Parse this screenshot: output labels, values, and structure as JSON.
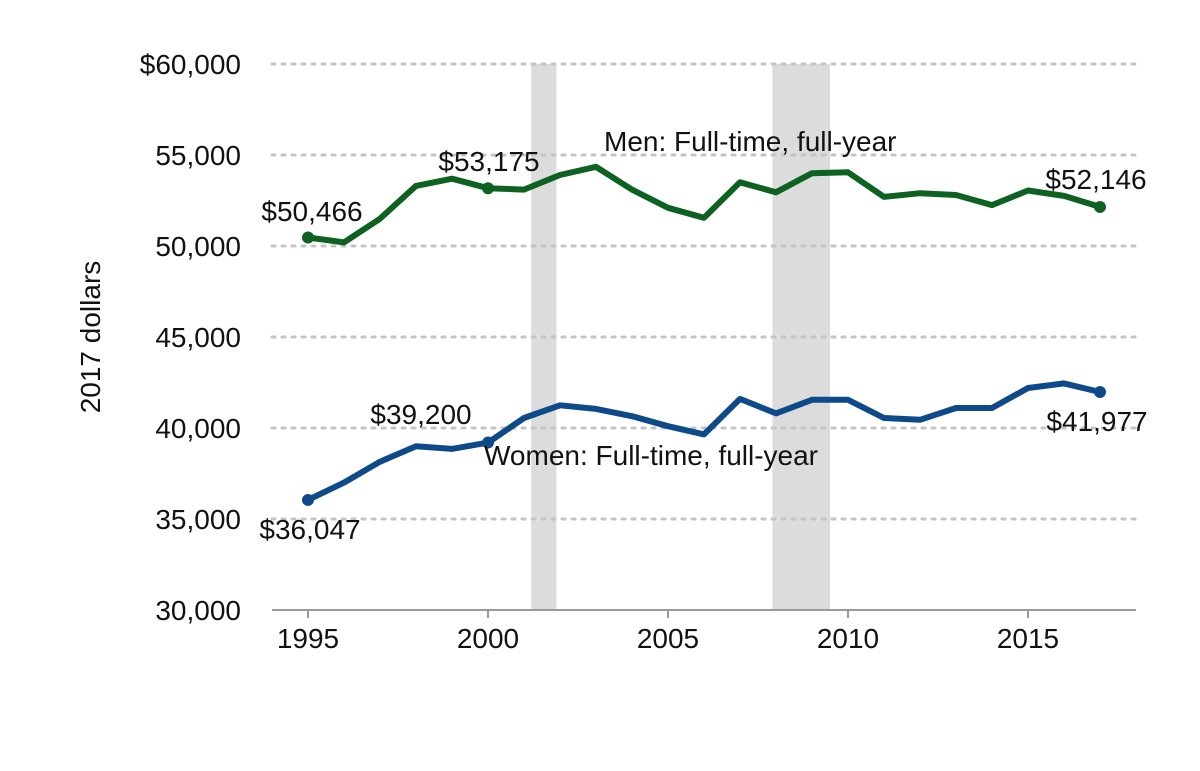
{
  "chart_data": {
    "type": "line",
    "title": "",
    "xlabel": "",
    "ylabel": "2017 dollars",
    "xlim": [
      1994,
      2018
    ],
    "ylim": [
      30000,
      60000
    ],
    "x_ticks": [
      1995,
      2000,
      2005,
      2010,
      2015
    ],
    "x_tick_labels": [
      "1995",
      "2000",
      "2005",
      "2010",
      "2015"
    ],
    "y_ticks": [
      30000,
      35000,
      40000,
      45000,
      50000,
      55000,
      60000
    ],
    "y_tick_labels": [
      "30,000",
      "35,000",
      "40,000",
      "45,000",
      "50,000",
      "55,000",
      "$60,000"
    ],
    "grid": true,
    "recession_bands": [
      {
        "start": 2001.2,
        "end": 2001.9
      },
      {
        "start": 2007.9,
        "end": 2009.5
      }
    ],
    "x": [
      1995,
      1996,
      1997,
      1998,
      1999,
      2000,
      2001,
      2002,
      2003,
      2004,
      2005,
      2006,
      2007,
      2008,
      2009,
      2010,
      2011,
      2012,
      2013,
      2014,
      2015,
      2016,
      2017
    ],
    "series": [
      {
        "name": "Men: Full-time, full-year",
        "color": "#0d6121",
        "values": [
          50466,
          50200,
          51500,
          53300,
          53700,
          53175,
          53100,
          53900,
          54350,
          53100,
          52100,
          51550,
          53500,
          52950,
          54000,
          54050,
          52700,
          52900,
          52800,
          52250,
          53050,
          52750,
          52146
        ],
        "labeled_points": [
          {
            "x": 1995,
            "label": "$50,466"
          },
          {
            "x": 2000,
            "label": "$53,175"
          },
          {
            "x": 2017,
            "label": "$52,146"
          }
        ]
      },
      {
        "name": "Women: Full-time, full-year",
        "color": "#0e4a8a",
        "values": [
          36047,
          37000,
          38150,
          39000,
          38850,
          39200,
          40550,
          41250,
          41050,
          40650,
          40100,
          39650,
          41600,
          40800,
          41550,
          41550,
          40550,
          40450,
          41100,
          41100,
          42200,
          42450,
          41977
        ],
        "labeled_points": [
          {
            "x": 1995,
            "label": "$36,047"
          },
          {
            "x": 2000,
            "label": "$39,200"
          },
          {
            "x": 2017,
            "label": "$41,977"
          }
        ]
      }
    ]
  }
}
